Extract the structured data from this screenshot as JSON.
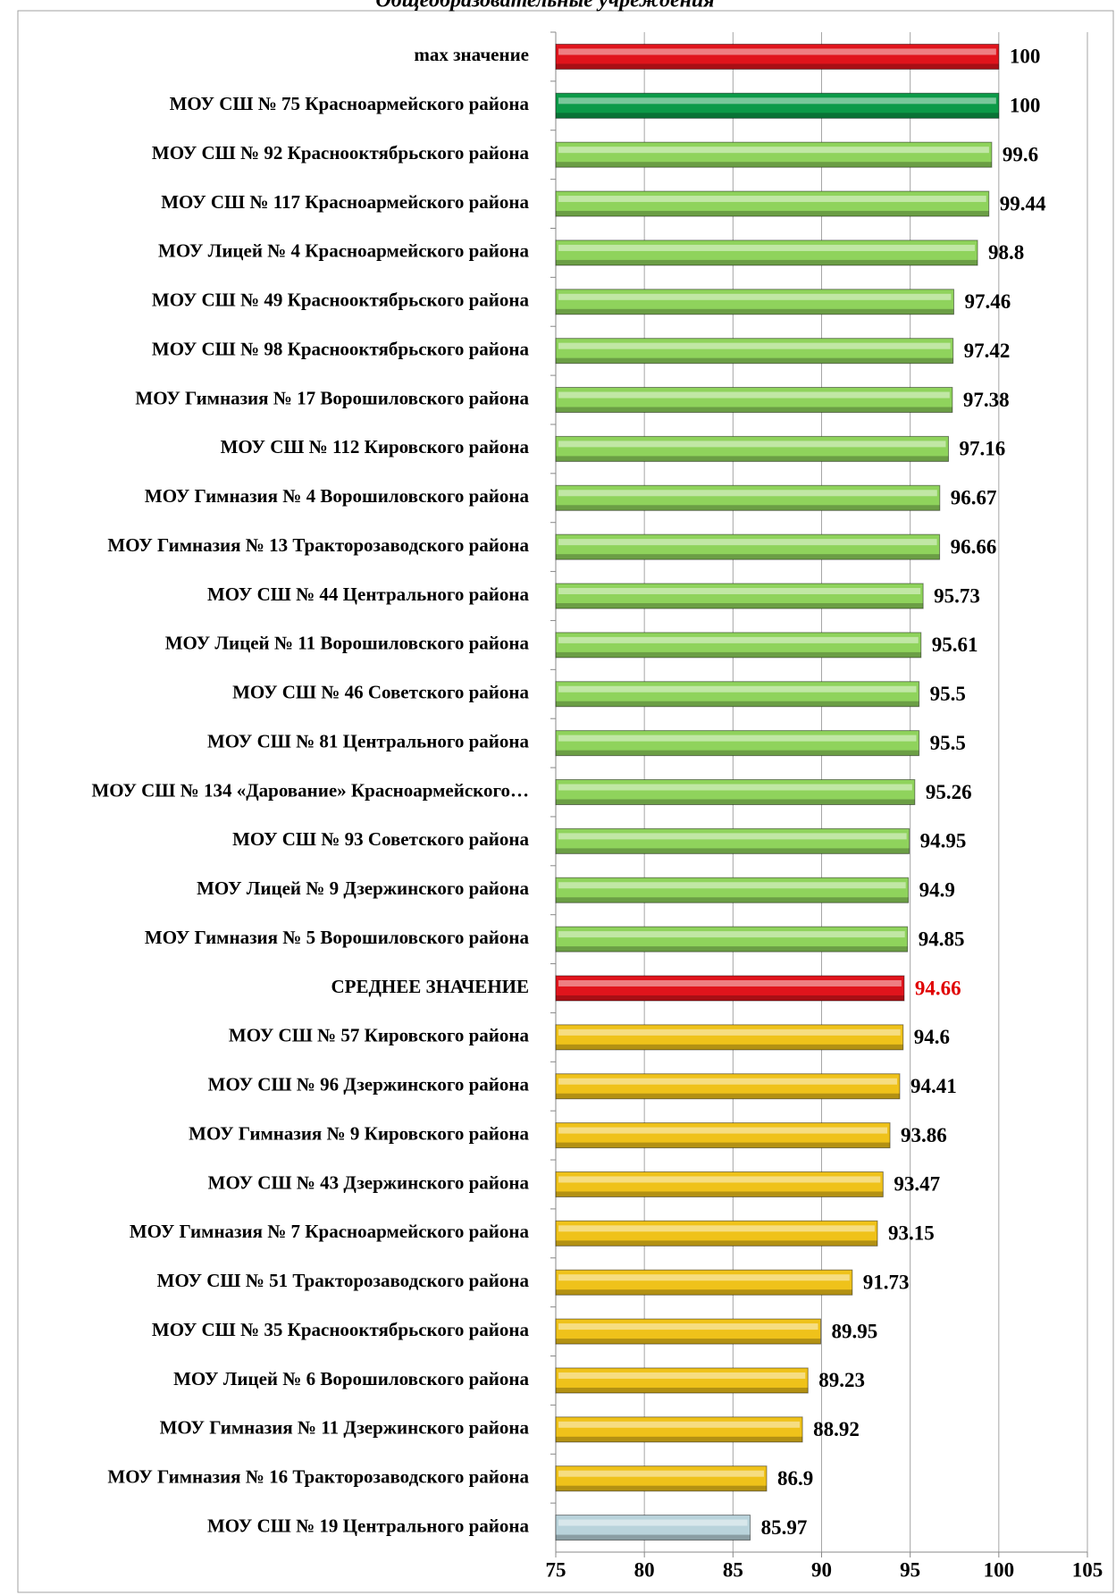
{
  "chart_data": {
    "type": "barh",
    "title": "Общеобразовательные учреждения",
    "categories": [
      "max значение",
      "МОУ СШ № 75 Красноармейского района",
      "МОУ СШ № 92 Краснооктябрьского района",
      "МОУ СШ № 117 Красноармейского района",
      "МОУ Лицей № 4 Красноармейского района",
      "МОУ СШ № 49 Краснооктябрьского района",
      "МОУ СШ № 98 Краснооктябрьского района",
      "МОУ  Гимназия № 17 Ворошиловского района",
      "МОУ СШ № 112 Кировского района",
      "МОУ  Гимназия № 4 Ворошиловского района",
      "МОУ  Гимназия № 13 Тракторозаводского района",
      "МОУ СШ № 44 Центрального района",
      "МОУ  Лицей № 11 Ворошиловского района",
      "МОУ СШ № 46 Советского района",
      "МОУ СШ № 81 Центрального района",
      "МОУ СШ № 134 «Дарование» Красноармейского…",
      "МОУ СШ № 93 Советского района",
      "МОУ  Лицей № 9 Дзержинского района",
      "МОУ  Гимназия № 5 Ворошиловского района",
      "СРЕДНЕЕ ЗНАЧЕНИЕ",
      "МОУ СШ № 57 Кировского района",
      "МОУ СШ  № 96 Дзержинского района",
      "МОУ  Гимназия № 9 Кировского района",
      "МОУ СШ № 43 Дзержинского района",
      "МОУ  Гимназия № 7 Красноармейского района",
      "МОУ СШ № 51  Тракторозаводского района",
      "МОУ СШ № 35 Краснооктябрьского района",
      "МОУ  Лицей № 6 Ворошиловского района",
      "МОУ Гимназия № 11 Дзержинского района",
      "МОУ Гимназия № 16 Тракторозаводского района",
      "МОУ СШ № 19 Центрального района"
    ],
    "values": [
      100,
      100,
      99.6,
      99.44,
      98.8,
      97.46,
      97.42,
      97.38,
      97.16,
      96.67,
      96.66,
      95.73,
      95.61,
      95.5,
      95.5,
      95.26,
      94.95,
      94.9,
      94.85,
      94.66,
      94.6,
      94.41,
      93.86,
      93.47,
      93.15,
      91.73,
      89.95,
      89.23,
      88.92,
      86.9,
      85.97
    ],
    "colors": [
      "#e0141c",
      "#0c9a48",
      "#8fd35c",
      "#8fd35c",
      "#8fd35c",
      "#8fd35c",
      "#8fd35c",
      "#8fd35c",
      "#8fd35c",
      "#8fd35c",
      "#8fd35c",
      "#8fd35c",
      "#8fd35c",
      "#8fd35c",
      "#8fd35c",
      "#8fd35c",
      "#8fd35c",
      "#8fd35c",
      "#8fd35c",
      "#e0141c",
      "#efc21a",
      "#efc21a",
      "#efc21a",
      "#efc21a",
      "#efc21a",
      "#efc21a",
      "#efc21a",
      "#efc21a",
      "#efc21a",
      "#efc21a",
      "#b9d3db"
    ],
    "value_label_colors": [
      "#000",
      "#000",
      "#000",
      "#000",
      "#000",
      "#000",
      "#000",
      "#000",
      "#000",
      "#000",
      "#000",
      "#000",
      "#000",
      "#000",
      "#000",
      "#000",
      "#000",
      "#000",
      "#000",
      "#e00000",
      "#000",
      "#000",
      "#000",
      "#000",
      "#000",
      "#000",
      "#000",
      "#000",
      "#000",
      "#000",
      "#000"
    ],
    "xlim": [
      75,
      105
    ],
    "xticks": [
      75,
      80,
      85,
      90,
      95,
      100,
      105
    ],
    "grid": true
  }
}
